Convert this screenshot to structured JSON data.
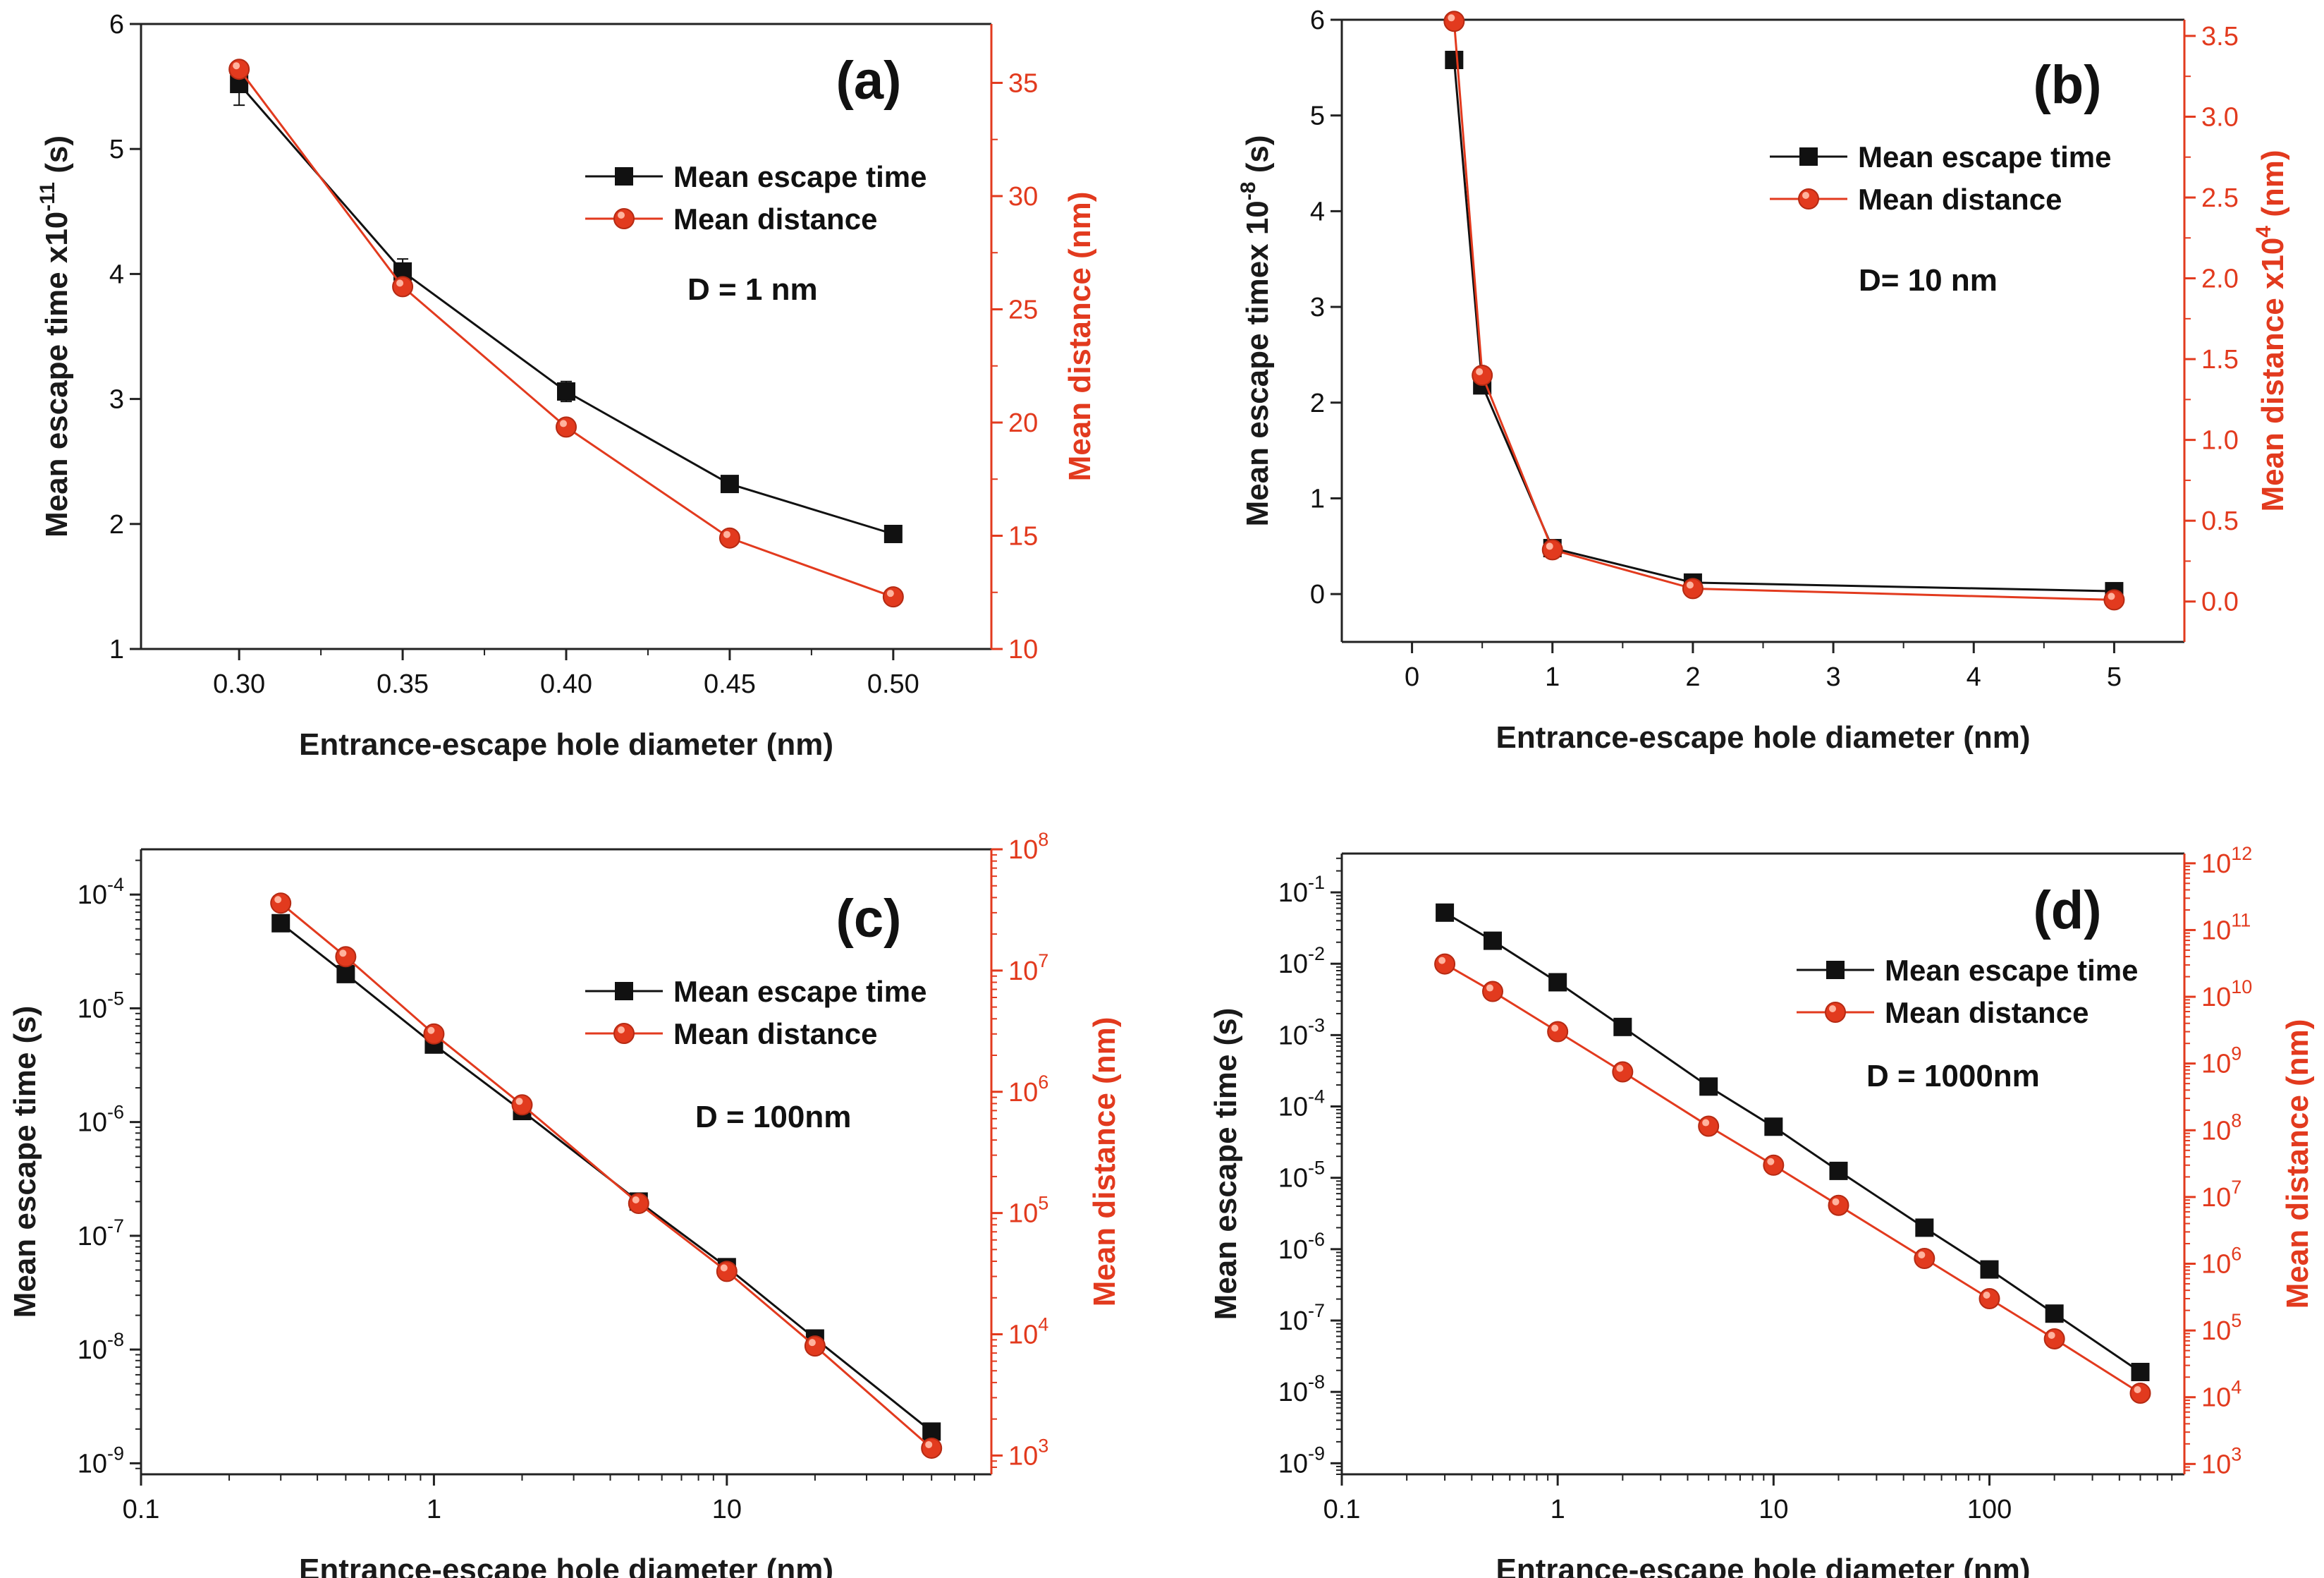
{
  "colors": {
    "time_series": "#111111",
    "distance_series": "#e23a1e",
    "axis": "#222222"
  },
  "chart_data": [
    {
      "type": "line",
      "panel_label": "(a)",
      "xscale": "linear",
      "yscale": "linear",
      "y2scale": "linear",
      "xlim": [
        0.27,
        0.53
      ],
      "ylim": [
        1,
        6
      ],
      "y2lim": [
        10,
        37.6
      ],
      "xticks": [
        {
          "v": 0.3,
          "t": "0.30"
        },
        {
          "v": 0.35,
          "t": "0.35"
        },
        {
          "v": 0.4,
          "t": "0.40"
        },
        {
          "v": 0.45,
          "t": "0.45"
        },
        {
          "v": 0.5,
          "t": "0.50"
        }
      ],
      "yticks": [
        {
          "v": 1,
          "t": "1"
        },
        {
          "v": 2,
          "t": "2"
        },
        {
          "v": 3,
          "t": "3"
        },
        {
          "v": 4,
          "t": "4"
        },
        {
          "v": 5,
          "t": "5"
        },
        {
          "v": 6,
          "t": "6"
        }
      ],
      "y2ticks": [
        {
          "v": 10,
          "t": "10"
        },
        {
          "v": 15,
          "t": "15"
        },
        {
          "v": 20,
          "t": "20"
        },
        {
          "v": 25,
          "t": "25"
        },
        {
          "v": 30,
          "t": "30"
        },
        {
          "v": 35,
          "t": "35"
        }
      ],
      "xlabel": "Entrance-escape hole diameter (nm)",
      "ylabel": "Mean escape time x10",
      "ylabel_sup": "-11",
      "ylabel_tail": " (s)",
      "y2label": "Mean distance (nm)",
      "y2label_sup": "",
      "y2label_tail": "",
      "annotation": "D = 1 nm",
      "legend": [
        "Mean escape time",
        "Mean distance"
      ],
      "series": [
        {
          "name": "Mean escape time",
          "axis": "left",
          "marker": "square",
          "x": [
            0.3,
            0.35,
            0.4,
            0.45,
            0.5
          ],
          "y": [
            5.52,
            4.02,
            3.06,
            2.32,
            1.92
          ],
          "yerr": [
            0.17,
            0.1,
            0.08,
            0.03,
            0.03
          ]
        },
        {
          "name": "Mean distance",
          "axis": "right",
          "marker": "circle",
          "x": [
            0.3,
            0.35,
            0.4,
            0.45,
            0.5
          ],
          "y": [
            35.6,
            26.0,
            19.8,
            14.9,
            12.3
          ]
        }
      ]
    },
    {
      "type": "line",
      "panel_label": "(b)",
      "xscale": "linear",
      "yscale": "linear",
      "y2scale": "linear",
      "xlim": [
        -0.5,
        5.5
      ],
      "ylim": [
        -0.5,
        6
      ],
      "y2lim": [
        -0.25,
        3.6
      ],
      "xticks": [
        {
          "v": 0,
          "t": "0"
        },
        {
          "v": 1,
          "t": "1"
        },
        {
          "v": 2,
          "t": "2"
        },
        {
          "v": 3,
          "t": "3"
        },
        {
          "v": 4,
          "t": "4"
        },
        {
          "v": 5,
          "t": "5"
        }
      ],
      "yticks": [
        {
          "v": 0,
          "t": "0"
        },
        {
          "v": 1,
          "t": "1"
        },
        {
          "v": 2,
          "t": "2"
        },
        {
          "v": 3,
          "t": "3"
        },
        {
          "v": 4,
          "t": "4"
        },
        {
          "v": 5,
          "t": "5"
        },
        {
          "v": 6,
          "t": "6"
        }
      ],
      "y2ticks": [
        {
          "v": 0,
          "t": "0.0"
        },
        {
          "v": 0.5,
          "t": "0.5"
        },
        {
          "v": 1.0,
          "t": "1.0"
        },
        {
          "v": 1.5,
          "t": "1.5"
        },
        {
          "v": 2.0,
          "t": "2.0"
        },
        {
          "v": 2.5,
          "t": "2.5"
        },
        {
          "v": 3.0,
          "t": "3.0"
        },
        {
          "v": 3.5,
          "t": "3.5"
        }
      ],
      "xlabel": "Entrance-escape hole diameter (nm)",
      "ylabel": "Mean escape timex 10",
      "ylabel_sup": "-8",
      "ylabel_tail": " (s)",
      "y2label": "Mean distance x10",
      "y2label_sup": "4",
      "y2label_tail": " (nm)",
      "annotation": "D= 10 nm",
      "legend": [
        "Mean escape time",
        "Mean distance"
      ],
      "series": [
        {
          "name": "Mean escape time",
          "axis": "left",
          "marker": "square",
          "x": [
            0.3,
            0.5,
            1,
            2,
            5
          ],
          "y": [
            5.58,
            2.18,
            0.48,
            0.12,
            0.03
          ]
        },
        {
          "name": "Mean distance",
          "axis": "right",
          "marker": "circle",
          "x": [
            0.3,
            0.5,
            1,
            2,
            5
          ],
          "y": [
            3.59,
            1.4,
            0.32,
            0.08,
            0.01
          ]
        }
      ]
    },
    {
      "type": "line",
      "panel_label": "(c)",
      "xscale": "log",
      "yscale": "log",
      "y2scale": "log",
      "xlim": [
        0.1,
        80
      ],
      "ylim": [
        8e-10,
        0.00025
      ],
      "y2lim": [
        700,
        100000000.0
      ],
      "xticks": [
        {
          "v": 0.1,
          "t": "0.1"
        },
        {
          "v": 1,
          "t": "1"
        },
        {
          "v": 10,
          "t": "10"
        }
      ],
      "yticks": [
        {
          "v": 1e-09,
          "b": "10",
          "e": "-9"
        },
        {
          "v": 1e-08,
          "b": "10",
          "e": "-8"
        },
        {
          "v": 1e-07,
          "b": "10",
          "e": "-7"
        },
        {
          "v": 1e-06,
          "b": "10",
          "e": "-6"
        },
        {
          "v": 1e-05,
          "b": "10",
          "e": "-5"
        },
        {
          "v": 0.0001,
          "b": "10",
          "e": "-4"
        }
      ],
      "y2ticks": [
        {
          "v": 1000.0,
          "b": "10",
          "e": "3"
        },
        {
          "v": 10000.0,
          "b": "10",
          "e": "4"
        },
        {
          "v": 100000.0,
          "b": "10",
          "e": "5"
        },
        {
          "v": 1000000.0,
          "b": "10",
          "e": "6"
        },
        {
          "v": 10000000.0,
          "b": "10",
          "e": "7"
        },
        {
          "v": 100000000.0,
          "b": "10",
          "e": "8"
        }
      ],
      "xlabel": "Entrance-escape hole diameter (nm)",
      "ylabel": "Mean escape time (s)",
      "ylabel_sup": "",
      "ylabel_tail": "",
      "y2label": "Mean distance (nm)",
      "y2label_sup": "",
      "y2label_tail": "",
      "annotation": "D = 100nm",
      "legend": [
        "Mean escape time",
        "Mean distance"
      ],
      "series": [
        {
          "name": "Mean escape time",
          "axis": "left",
          "marker": "square",
          "x": [
            0.3,
            0.5,
            1,
            2,
            5,
            10,
            20,
            50
          ],
          "y": [
            5.6e-05,
            2e-05,
            4.8e-06,
            1.25e-06,
            2e-07,
            5.3e-08,
            1.25e-08,
            1.9e-09
          ]
        },
        {
          "name": "Mean distance",
          "axis": "right",
          "marker": "circle",
          "x": [
            0.3,
            0.5,
            1,
            2,
            5,
            10,
            20,
            50
          ],
          "y": [
            36000000.0,
            13000000.0,
            3000000.0,
            780000.0,
            120000.0,
            33000.0,
            8000.0,
            1150.0
          ]
        }
      ]
    },
    {
      "type": "line",
      "panel_label": "(d)",
      "xscale": "log",
      "yscale": "log",
      "y2scale": "log",
      "xlim": [
        0.1,
        800
      ],
      "ylim": [
        7e-10,
        0.35
      ],
      "y2lim": [
        700,
        1400000000000.0
      ],
      "xticks": [
        {
          "v": 0.1,
          "t": "0.1"
        },
        {
          "v": 1,
          "t": "1"
        },
        {
          "v": 10,
          "t": "10"
        },
        {
          "v": 100,
          "t": "100"
        }
      ],
      "yticks": [
        {
          "v": 1e-09,
          "b": "10",
          "e": "-9"
        },
        {
          "v": 1e-08,
          "b": "10",
          "e": "-8"
        },
        {
          "v": 1e-07,
          "b": "10",
          "e": "-7"
        },
        {
          "v": 1e-06,
          "b": "10",
          "e": "-6"
        },
        {
          "v": 1e-05,
          "b": "10",
          "e": "-5"
        },
        {
          "v": 0.0001,
          "b": "10",
          "e": "-4"
        },
        {
          "v": 0.001,
          "b": "10",
          "e": "-3"
        },
        {
          "v": 0.01,
          "b": "10",
          "e": "-2"
        },
        {
          "v": 0.1,
          "b": "10",
          "e": "-1"
        }
      ],
      "y2ticks": [
        {
          "v": 1000.0,
          "b": "10",
          "e": "3"
        },
        {
          "v": 10000.0,
          "b": "10",
          "e": "4"
        },
        {
          "v": 100000.0,
          "b": "10",
          "e": "5"
        },
        {
          "v": 1000000.0,
          "b": "10",
          "e": "6"
        },
        {
          "v": 10000000.0,
          "b": "10",
          "e": "7"
        },
        {
          "v": 100000000.0,
          "b": "10",
          "e": "8"
        },
        {
          "v": 1000000000.0,
          "b": "10",
          "e": "9"
        },
        {
          "v": 10000000000.0,
          "b": "10",
          "e": "10"
        },
        {
          "v": 100000000000.0,
          "b": "10",
          "e": "11"
        },
        {
          "v": 1000000000000.0,
          "b": "10",
          "e": "12"
        }
      ],
      "xlabel": "Entrance-escape hole diameter (nm)",
      "ylabel": "Mean escape time (s)",
      "ylabel_sup": "",
      "ylabel_tail": "",
      "y2label": "Mean distance (nm)",
      "y2label_sup": "",
      "y2label_tail": "",
      "annotation": "D = 1000nm",
      "legend": [
        "Mean escape time",
        "Mean distance"
      ],
      "series": [
        {
          "name": "Mean escape time",
          "axis": "left",
          "marker": "square",
          "x": [
            0.3,
            0.5,
            1,
            2,
            5,
            10,
            20,
            50,
            100,
            200,
            500
          ],
          "y": [
            0.052,
            0.021,
            0.0055,
            0.0013,
            0.00019,
            5.2e-05,
            1.25e-05,
            2e-06,
            5.2e-07,
            1.25e-07,
            1.9e-08
          ]
        },
        {
          "name": "Mean distance",
          "axis": "right",
          "marker": "circle",
          "x": [
            0.3,
            0.5,
            1,
            2,
            5,
            10,
            20,
            50,
            100,
            200,
            500
          ],
          "y": [
            31000000000.0,
            12000000000.0,
            3000000000.0,
            750000000.0,
            115000000.0,
            30000000.0,
            7500000.0,
            1200000.0,
            300000.0,
            75000.0,
            11500.0
          ]
        }
      ]
    }
  ]
}
